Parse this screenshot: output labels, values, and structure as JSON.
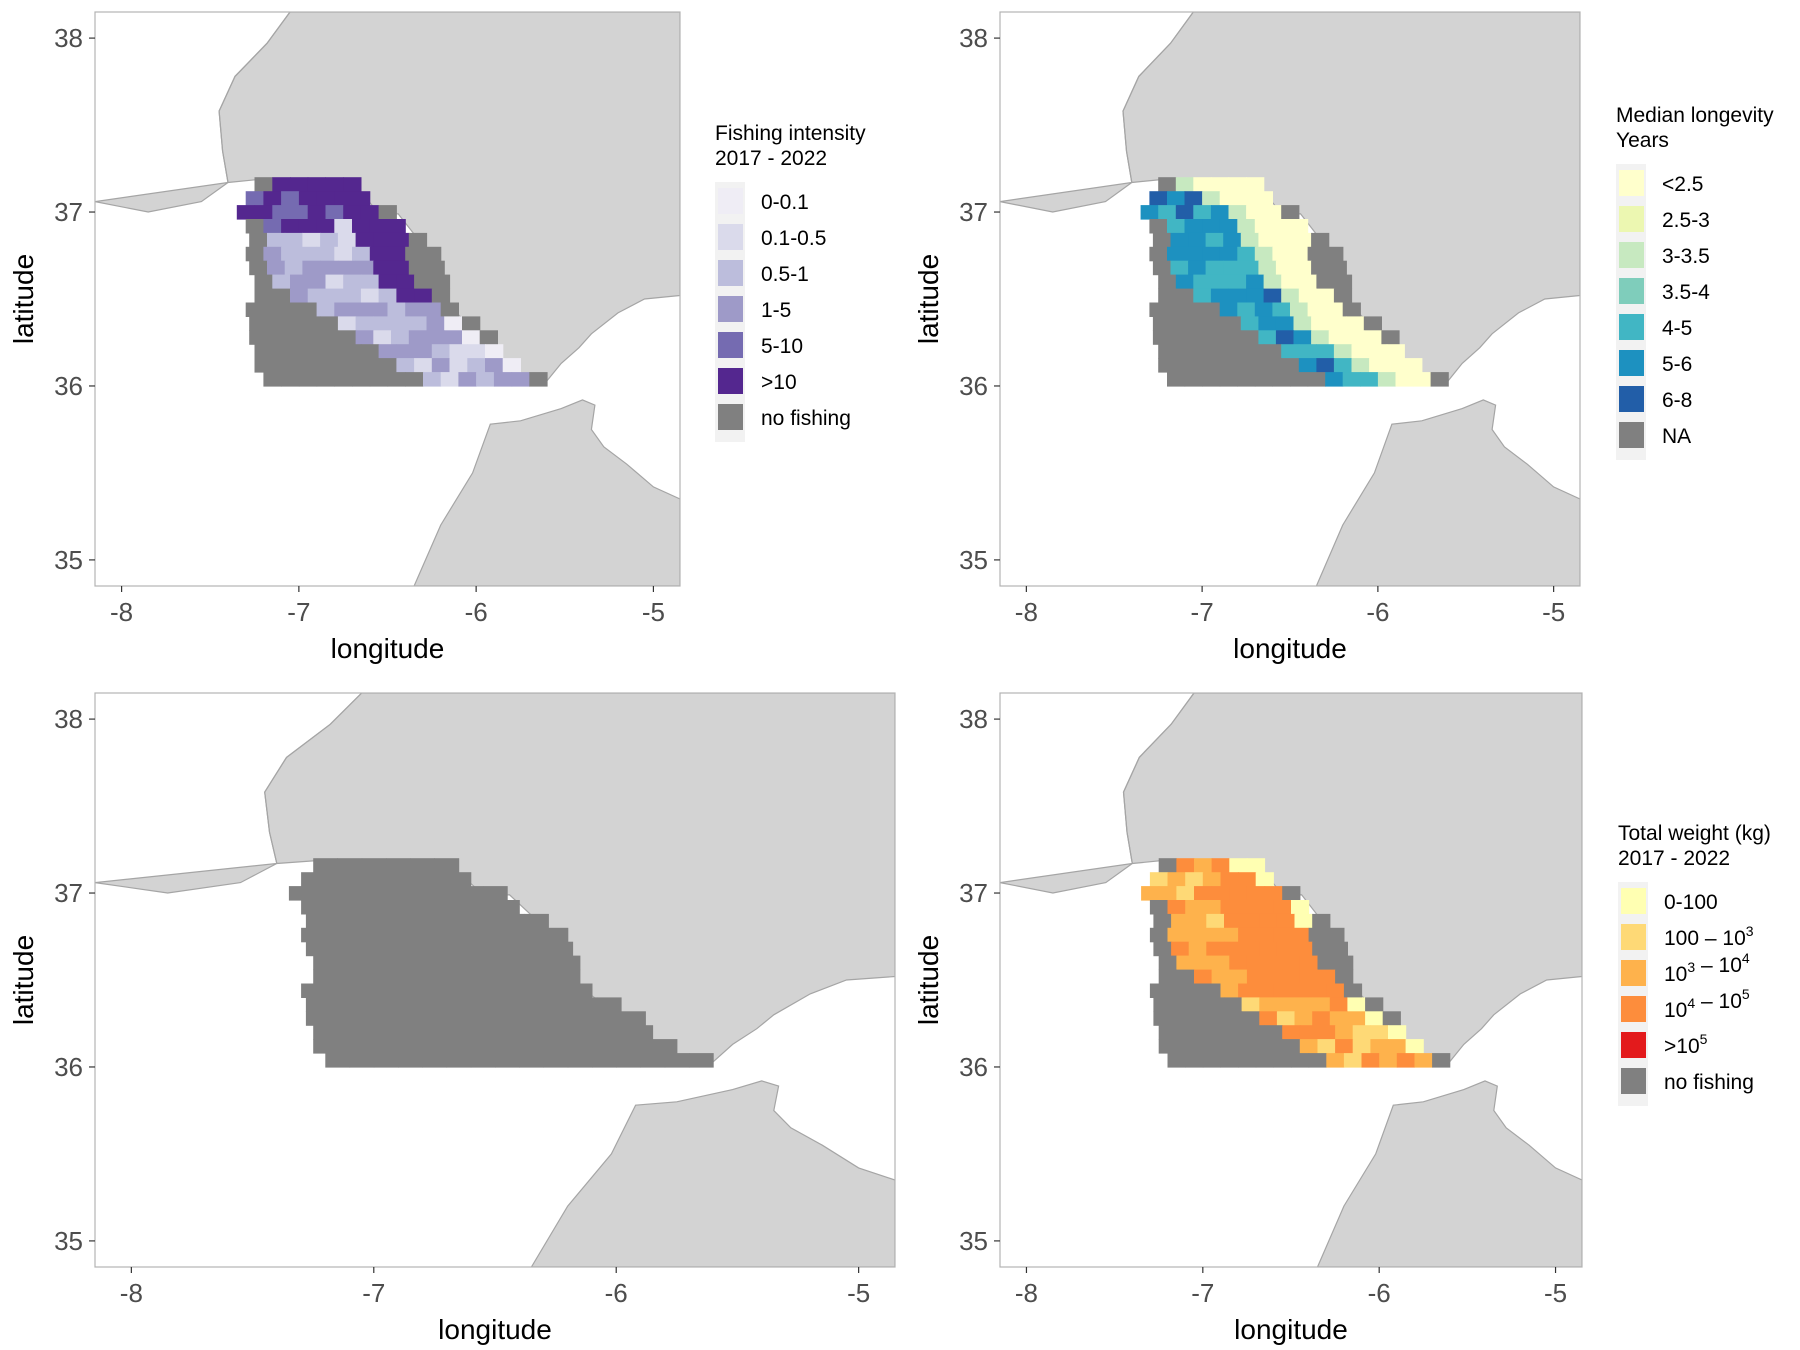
{
  "colors": {
    "land": "#d3d3d3",
    "coast": "#a5a5a5",
    "sea": "#ffffff",
    "nodata": "#808080",
    "axis_text": "#4d4d4d",
    "label": "#000000"
  },
  "axes": {
    "xlabel": "longitude",
    "ylabel": "latitude",
    "xticks": [
      "-8",
      "-7",
      "-6",
      "-5"
    ],
    "yticks": [
      "35",
      "36",
      "37",
      "38"
    ]
  },
  "chart_data": [
    {
      "type": "heatmap",
      "id": "fishing-intensity",
      "xlim": [
        -8.15,
        -4.85
      ],
      "ylim": [
        34.85,
        38.15
      ],
      "legend": {
        "title": [
          "Fishing intensity",
          " 2017 - 2022"
        ],
        "placement": "right",
        "items": [
          {
            "label": "0-0.1",
            "color": "#efedf5"
          },
          {
            "label": "0.1-0.5",
            "color": "#dadaeb"
          },
          {
            "label": "0.5-1",
            "color": "#bcbddc"
          },
          {
            "label": "1-5",
            "color": "#9e9ac8"
          },
          {
            "label": "5-10",
            "color": "#756bb1"
          },
          {
            "label": ">10",
            "color": "#54278f"
          },
          {
            "label": "no fishing",
            "color": "#808080"
          }
        ]
      }
    },
    {
      "type": "heatmap",
      "id": "median-longevity",
      "xlim": [
        -8.15,
        -4.85
      ],
      "ylim": [
        34.85,
        38.15
      ],
      "legend": {
        "title": [
          "Median longevity",
          " Years"
        ],
        "placement": "right",
        "items": [
          {
            "label": "<2.5",
            "color": "#ffffcc"
          },
          {
            "label": "2.5-3",
            "color": "#ecf7b1"
          },
          {
            "label": "3-3.5",
            "color": "#c7e9c0"
          },
          {
            "label": "3.5-4",
            "color": "#7fcdbb"
          },
          {
            "label": "4-5",
            "color": "#41b6c4"
          },
          {
            "label": "5-6",
            "color": "#1d91c0"
          },
          {
            "label": "6-8",
            "color": "#225ea8"
          },
          {
            "label": "NA",
            "color": "#808080"
          }
        ]
      }
    },
    {
      "type": "heatmap",
      "id": "study-area",
      "xlim": [
        -8.15,
        -4.85
      ],
      "ylim": [
        34.85,
        38.15
      ]
    },
    {
      "type": "heatmap",
      "id": "total-weight",
      "xlim": [
        -8.15,
        -4.85
      ],
      "ylim": [
        34.85,
        38.15
      ],
      "legend": {
        "title": [
          "Total weight (kg)",
          " 2017 - 2022"
        ],
        "placement": "right",
        "items": [
          {
            "label": "0-100",
            "color": "#ffffb2"
          },
          {
            "label": "100 – 10^3",
            "color": "#fed976"
          },
          {
            "label": "10^3 – 10^4",
            "color": "#feb24c"
          },
          {
            "label": "10^4 – 10^5",
            "color": "#fd8d3c"
          },
          {
            "label": ">10^5",
            "color": "#e31a1c"
          },
          {
            "label": "no fishing",
            "color": "#808080"
          }
        ]
      }
    }
  ]
}
